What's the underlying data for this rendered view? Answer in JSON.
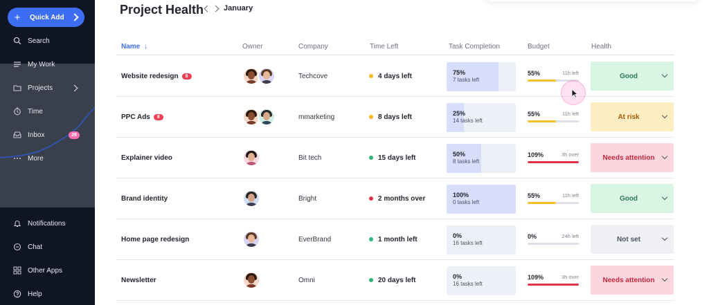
{
  "colors": {
    "sidebar_bg": "#0f1525",
    "accent": "#3d6df2",
    "good_bg": "#d9f6e4",
    "good_text": "#2a7a4c",
    "at_risk_bg": "#fdedc3",
    "at_risk_text": "#a15b06",
    "needs_attention_bg": "#fcd6de",
    "needs_attention_text": "#c2283f",
    "not_set_bg": "#eef0f4",
    "not_set_text": "#4e5162",
    "dot_yellow": "#f6b91e",
    "dot_green": "#2bb57a",
    "dot_red": "#e23247",
    "budget_yellow": "#f6c126",
    "budget_red": "#e23247"
  },
  "sidebar": {
    "quick_add": {
      "label": "Quick Add",
      "icon": "plus-icon"
    },
    "items_top": [
      {
        "label": "Search",
        "icon": "search-icon"
      },
      {
        "label": "My Work",
        "icon": "list-icon"
      },
      {
        "label": "Projects",
        "icon": "folder-icon",
        "chevron": true
      },
      {
        "label": "Time",
        "icon": "clock-icon"
      },
      {
        "label": "Inbox",
        "icon": "inbox-icon",
        "badge": "28"
      },
      {
        "label": "More",
        "icon": "more-icon"
      }
    ],
    "items_bottom": [
      {
        "label": "Notifications",
        "icon": "bell-icon"
      },
      {
        "label": "Chat",
        "icon": "chat-icon"
      },
      {
        "label": "Other Apps",
        "icon": "apps-icon"
      },
      {
        "label": "Help",
        "icon": "help-icon"
      }
    ]
  },
  "header": {
    "title": "Project Health",
    "month": "January"
  },
  "table": {
    "columns": {
      "name": "Name",
      "owner": "Owner",
      "company": "Company",
      "time_left": "Time Left",
      "task_completion": "Task Completion",
      "budget": "Budget",
      "health": "Health"
    },
    "sort_indicator": "↓",
    "rows": [
      {
        "name": "Website redesign",
        "badge": "8",
        "owners": [
          "woman-curly",
          "man-glasses"
        ],
        "company": "Techcove",
        "time_left": "4 days left",
        "dot": "yellow",
        "task_pct": "75%",
        "task_fill": 0.75,
        "tasks_left": "7 tasks left",
        "budget_pct": "55%",
        "budget_fill": 0.55,
        "budget_color": "yellow",
        "budget_note": "11h left",
        "health": "Good",
        "health_kind": "good"
      },
      {
        "name": "PPC Ads",
        "badge": "8",
        "owners": [
          "woman-curly",
          "man-green"
        ],
        "company": "mmarketing",
        "time_left": "8 days left",
        "dot": "yellow",
        "task_pct": "25%",
        "task_fill": 0.25,
        "tasks_left": "14 tasks left",
        "budget_pct": "55%",
        "budget_fill": 0.55,
        "budget_color": "yellow",
        "budget_note": "11h left",
        "health": "At risk",
        "health_kind": "at_risk"
      },
      {
        "name": "Explainer video",
        "badge": "",
        "owners": [
          "woman-pink"
        ],
        "company": "Bit tech",
        "time_left": "15 days left",
        "dot": "green",
        "task_pct": "50%",
        "task_fill": 0.5,
        "tasks_left": "8 tasks left",
        "budget_pct": "109%",
        "budget_fill": 1.0,
        "budget_color": "red",
        "budget_note": "3h over",
        "health": "Needs attention",
        "health_kind": "needs_attention"
      },
      {
        "name": "Brand identity",
        "badge": "",
        "owners": [
          "man-blue"
        ],
        "company": "Bright",
        "time_left": "2 months over",
        "dot": "red",
        "task_pct": "100%",
        "task_fill": 1.0,
        "tasks_left": "0 tasks left",
        "budget_pct": "55%",
        "budget_fill": 0.55,
        "budget_color": "yellow",
        "budget_note": "11h left",
        "health": "Good",
        "health_kind": "good"
      },
      {
        "name": "Home page redesign",
        "badge": "",
        "owners": [
          "man-glasses"
        ],
        "company": "EverBrand",
        "time_left": "1 month left",
        "dot": "green",
        "task_pct": "0%",
        "task_fill": 0,
        "tasks_left": "16 tasks left",
        "budget_pct": "0%",
        "budget_fill": 0,
        "budget_color": "yellow",
        "budget_note": "24h left",
        "health": "Not set",
        "health_kind": "not_set"
      },
      {
        "name": "Newsletter",
        "badge": "",
        "owners": [
          "woman-curly"
        ],
        "company": "Omni",
        "time_left": "20 days left",
        "dot": "green",
        "task_pct": "0%",
        "task_fill": 0,
        "tasks_left": "16 tasks left",
        "budget_pct": "109%",
        "budget_fill": 1.0,
        "budget_color": "red",
        "budget_note": "3h over",
        "health": "Needs attention",
        "health_kind": "needs_attention"
      }
    ]
  }
}
